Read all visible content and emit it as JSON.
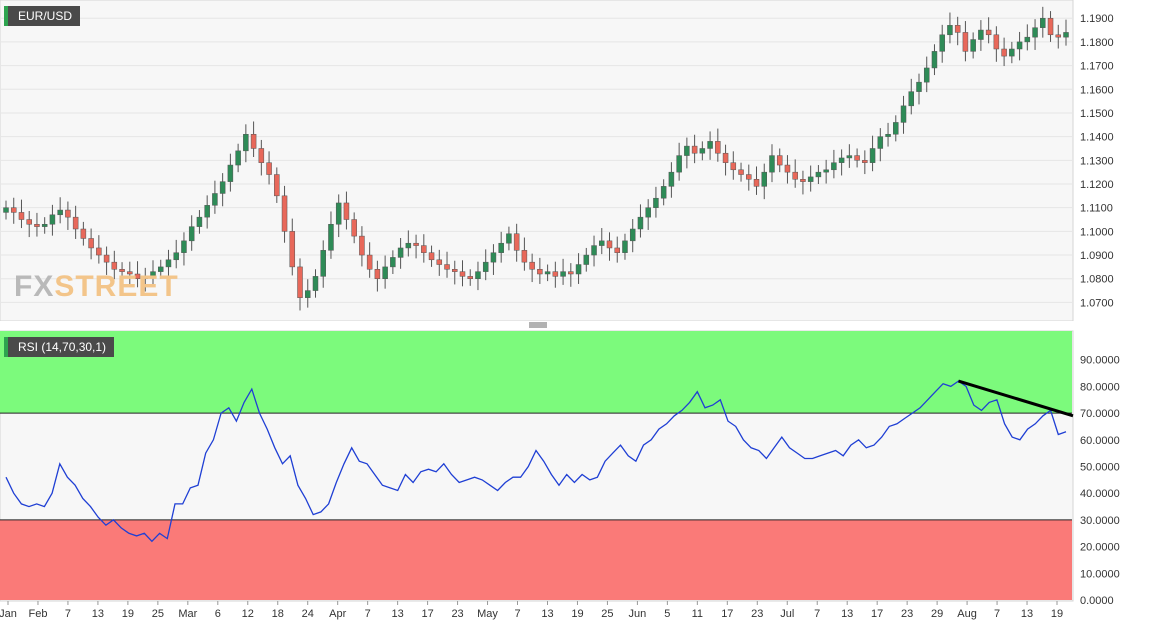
{
  "symbol": "EUR/USD",
  "indicator": "RSI (14,70,30,1)",
  "watermark": {
    "part1": "FX",
    "part2": "STREET"
  },
  "colors": {
    "up": "#2e8b57",
    "down": "#e8685a",
    "overbought_zone": "#7cfa7c",
    "oversold_zone": "#fa7a78",
    "rsi_line": "#1f3fd4",
    "trendline": "#000000"
  },
  "chart_data": [
    {
      "type": "candlestick",
      "title": "EUR/USD",
      "ylim": [
        1.063,
        1.196
      ],
      "yticks": [
        "1.0700",
        "1.0800",
        "1.0900",
        "1.1000",
        "1.1100",
        "1.1200",
        "1.1300",
        "1.1400",
        "1.1500",
        "1.1600",
        "1.1700",
        "1.1800",
        "1.1900"
      ],
      "x_labels": [
        "Jan",
        "Feb",
        "7",
        "13",
        "19",
        "25",
        "Mar",
        "6",
        "12",
        "18",
        "24",
        "Apr",
        "7",
        "13",
        "17",
        "23",
        "May",
        "7",
        "13",
        "19",
        "25",
        "Jun",
        "5",
        "11",
        "17",
        "23",
        "Jul",
        "7",
        "13",
        "17",
        "23",
        "29",
        "Aug",
        "7",
        "13",
        "19"
      ],
      "close_series": [
        1.11,
        1.108,
        1.105,
        1.103,
        1.102,
        1.103,
        1.107,
        1.109,
        1.106,
        1.101,
        1.097,
        1.093,
        1.09,
        1.087,
        1.084,
        1.083,
        1.082,
        1.08,
        1.081,
        1.083,
        1.085,
        1.088,
        1.091,
        1.096,
        1.102,
        1.106,
        1.111,
        1.116,
        1.121,
        1.128,
        1.134,
        1.141,
        1.135,
        1.129,
        1.124,
        1.115,
        1.1,
        1.085,
        1.072,
        1.075,
        1.081,
        1.092,
        1.103,
        1.112,
        1.105,
        1.098,
        1.09,
        1.084,
        1.08,
        1.085,
        1.089,
        1.093,
        1.095,
        1.094,
        1.091,
        1.088,
        1.086,
        1.084,
        1.083,
        1.081,
        1.08,
        1.083,
        1.087,
        1.091,
        1.095,
        1.099,
        1.092,
        1.087,
        1.084,
        1.082,
        1.083,
        1.081,
        1.083,
        1.082,
        1.086,
        1.09,
        1.094,
        1.096,
        1.093,
        1.091,
        1.096,
        1.101,
        1.106,
        1.11,
        1.114,
        1.119,
        1.125,
        1.132,
        1.136,
        1.133,
        1.135,
        1.138,
        1.133,
        1.129,
        1.126,
        1.124,
        1.122,
        1.119,
        1.125,
        1.132,
        1.128,
        1.125,
        1.122,
        1.121,
        1.123,
        1.125,
        1.126,
        1.129,
        1.131,
        1.132,
        1.13,
        1.129,
        1.135,
        1.14,
        1.141,
        1.146,
        1.153,
        1.159,
        1.163,
        1.169,
        1.176,
        1.183,
        1.187,
        1.184,
        1.176,
        1.181,
        1.185,
        1.183,
        1.177,
        1.174,
        1.177,
        1.18,
        1.182,
        1.186,
        1.19,
        1.183,
        1.182,
        1.184
      ]
    },
    {
      "type": "line",
      "title": "RSI (14,70,30,1)",
      "ylim": [
        0,
        100
      ],
      "yticks": [
        "0.0000",
        "10.0000",
        "20.0000",
        "30.0000",
        "40.0000",
        "50.0000",
        "60.0000",
        "70.0000",
        "80.0000",
        "90.0000"
      ],
      "overbought": 70,
      "oversold": 30,
      "series": [
        {
          "values": [
            46,
            40,
            36,
            35,
            36,
            35,
            40,
            51,
            46,
            43,
            38,
            35,
            31,
            28,
            30,
            27,
            25,
            24,
            25,
            22,
            25,
            23,
            36,
            36,
            42,
            43,
            55,
            60,
            70,
            72,
            67,
            74,
            79,
            70,
            64,
            57,
            51,
            54,
            43,
            38,
            32,
            33,
            36,
            44,
            51,
            57,
            52,
            51,
            47,
            43,
            42,
            41,
            47,
            44,
            48,
            49,
            48,
            51,
            47,
            44,
            45,
            46,
            45,
            43,
            41,
            44,
            46,
            46,
            50,
            56,
            52,
            47,
            43,
            47,
            44,
            47,
            45,
            46,
            52,
            55,
            58,
            54,
            52,
            58,
            60,
            64,
            66,
            69,
            71,
            74,
            78,
            72,
            73,
            75,
            67,
            65,
            60,
            57,
            56,
            53,
            57,
            61,
            57,
            55,
            53,
            53,
            54,
            55,
            56,
            54,
            58,
            60,
            57,
            58,
            61,
            65,
            66,
            68,
            70,
            72,
            75,
            78,
            81,
            80,
            82,
            80,
            73,
            71,
            74,
            75,
            66,
            61,
            60,
            64,
            66,
            69,
            71,
            62,
            63
          ]
        }
      ],
      "trendline": {
        "from": 82,
        "to": 69
      }
    }
  ]
}
